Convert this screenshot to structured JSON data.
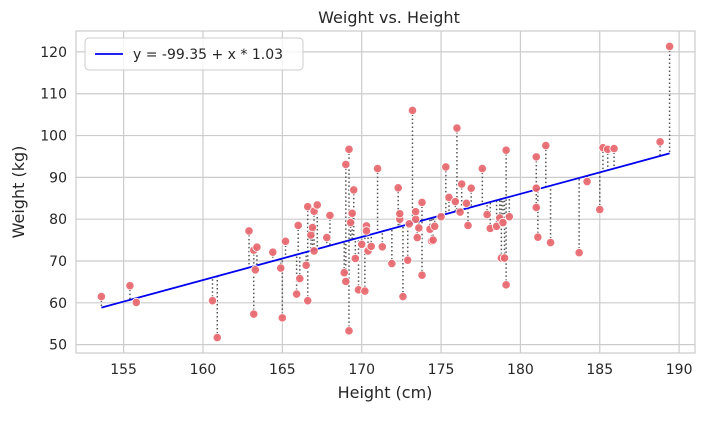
{
  "chart_data": {
    "type": "scatter",
    "title": "Weight vs. Height",
    "xlabel": "Height (cm)",
    "ylabel": "Weight (kg)",
    "xlim": [
      152.0,
      191.0
    ],
    "ylim": [
      48.0,
      125.0
    ],
    "xticks": [
      155,
      160,
      165,
      170,
      175,
      180,
      185,
      190
    ],
    "yticks": [
      50,
      60,
      70,
      80,
      90,
      100,
      110,
      120
    ],
    "grid": true,
    "legend": {
      "position": "top-left",
      "entries": [
        "y = -99.35 + x * 1.03"
      ]
    },
    "regression": {
      "intercept": -99.35,
      "slope": 1.03,
      "x_range": [
        153.6,
        189.4
      ],
      "color": "#0000ee"
    },
    "residual_style": {
      "color": "#555555",
      "dash": "dotted"
    },
    "point_color": "#e8676e",
    "points": [
      [
        153.6,
        61.5
      ],
      [
        155.4,
        64.1
      ],
      [
        155.8,
        60.1
      ],
      [
        160.6,
        60.5
      ],
      [
        160.9,
        51.7
      ],
      [
        162.9,
        77.2
      ],
      [
        163.2,
        72.6
      ],
      [
        163.3,
        67.9
      ],
      [
        163.4,
        73.3
      ],
      [
        163.2,
        57.3
      ],
      [
        164.4,
        72.1
      ],
      [
        164.9,
        68.3
      ],
      [
        165.0,
        56.4
      ],
      [
        165.2,
        74.7
      ],
      [
        165.9,
        62.1
      ],
      [
        166.0,
        78.5
      ],
      [
        166.1,
        65.8
      ],
      [
        166.5,
        69.0
      ],
      [
        166.6,
        60.5
      ],
      [
        166.6,
        83.0
      ],
      [
        166.8,
        76.2
      ],
      [
        166.9,
        78.0
      ],
      [
        167.0,
        81.9
      ],
      [
        167.0,
        72.4
      ],
      [
        167.2,
        83.4
      ],
      [
        167.8,
        75.6
      ],
      [
        168.0,
        80.9
      ],
      [
        168.9,
        67.2
      ],
      [
        169.0,
        93.1
      ],
      [
        169.0,
        65.1
      ],
      [
        169.2,
        96.7
      ],
      [
        169.2,
        53.3
      ],
      [
        169.3,
        79.2
      ],
      [
        169.4,
        81.4
      ],
      [
        169.5,
        87.0
      ],
      [
        169.6,
        70.6
      ],
      [
        169.8,
        63.1
      ],
      [
        170.0,
        74.0
      ],
      [
        170.2,
        62.8
      ],
      [
        170.3,
        78.4
      ],
      [
        170.3,
        77.2
      ],
      [
        170.4,
        72.4
      ],
      [
        170.6,
        73.5
      ],
      [
        171.0,
        92.1
      ],
      [
        171.3,
        73.4
      ],
      [
        171.9,
        69.4
      ],
      [
        172.3,
        87.5
      ],
      [
        172.4,
        80.0
      ],
      [
        172.4,
        81.3
      ],
      [
        172.6,
        61.5
      ],
      [
        172.9,
        70.2
      ],
      [
        173.0,
        78.9
      ],
      [
        173.2,
        106.0
      ],
      [
        173.4,
        80.0
      ],
      [
        173.4,
        81.8
      ],
      [
        173.5,
        75.6
      ],
      [
        173.6,
        77.9
      ],
      [
        173.8,
        66.6
      ],
      [
        173.8,
        84.0
      ],
      [
        174.3,
        77.6
      ],
      [
        174.4,
        74.8
      ],
      [
        174.5,
        75.0
      ],
      [
        174.6,
        78.3
      ],
      [
        175.0,
        80.6
      ],
      [
        175.3,
        92.5
      ],
      [
        175.5,
        85.2
      ],
      [
        175.9,
        84.2
      ],
      [
        176.0,
        101.8
      ],
      [
        176.2,
        81.7
      ],
      [
        176.3,
        88.4
      ],
      [
        176.6,
        83.8
      ],
      [
        176.7,
        78.5
      ],
      [
        176.9,
        87.4
      ],
      [
        177.6,
        92.1
      ],
      [
        177.9,
        81.1
      ],
      [
        178.1,
        77.8
      ],
      [
        178.5,
        78.3
      ],
      [
        178.7,
        80.3
      ],
      [
        178.8,
        70.7
      ],
      [
        178.9,
        79.2
      ],
      [
        179.0,
        70.7
      ],
      [
        179.1,
        64.3
      ],
      [
        179.1,
        96.5
      ],
      [
        179.3,
        80.6
      ],
      [
        181.0,
        94.9
      ],
      [
        181.0,
        87.4
      ],
      [
        181.0,
        82.8
      ],
      [
        181.1,
        75.7
      ],
      [
        181.6,
        97.6
      ],
      [
        181.9,
        74.4
      ],
      [
        183.7,
        72.0
      ],
      [
        184.2,
        89.0
      ],
      [
        185.0,
        82.3
      ],
      [
        185.2,
        97.1
      ],
      [
        185.5,
        96.7
      ],
      [
        185.9,
        96.9
      ],
      [
        188.8,
        98.5
      ],
      [
        189.4,
        121.3
      ]
    ]
  }
}
